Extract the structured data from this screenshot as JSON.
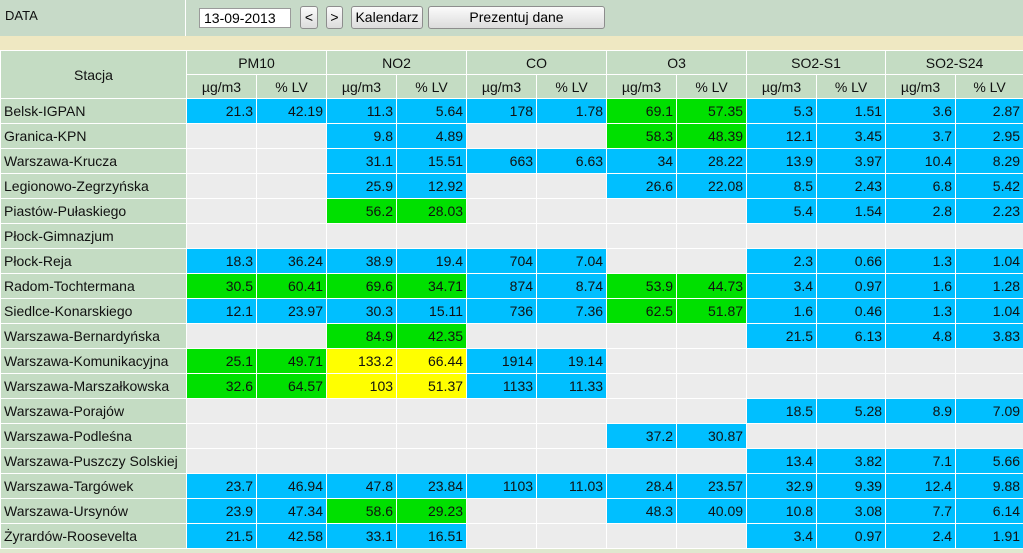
{
  "header": {
    "data_label": "DATA",
    "date_value": "13-09-2013",
    "prev_label": "<",
    "next_label": ">",
    "calendar_label": "Kalendarz",
    "present_label": "Prezentuj dane"
  },
  "colors": {
    "blue": "#00bfff",
    "green": "#00e000",
    "yellow": "#ffff00",
    "empty": "#ececec",
    "header": "#c4dcc3"
  },
  "table": {
    "station_header": "Stacja",
    "pollutants": [
      "PM10",
      "NO2",
      "CO",
      "O3",
      "SO2-S1",
      "SO2-S24"
    ],
    "units": [
      "µg/m3",
      "% LV"
    ],
    "rows": [
      {
        "name": "Belsk-IGPAN",
        "cells": [
          [
            "21.3",
            "b"
          ],
          [
            "42.19",
            "b"
          ],
          [
            "11.3",
            "b"
          ],
          [
            "5.64",
            "b"
          ],
          [
            "178",
            "b"
          ],
          [
            "1.78",
            "b"
          ],
          [
            "69.1",
            "g"
          ],
          [
            "57.35",
            "g"
          ],
          [
            "5.3",
            "b"
          ],
          [
            "1.51",
            "b"
          ],
          [
            "3.6",
            "b"
          ],
          [
            "2.87",
            "b"
          ]
        ]
      },
      {
        "name": "Granica-KPN",
        "cells": [
          [
            "",
            "e"
          ],
          [
            "",
            "e"
          ],
          [
            "9.8",
            "b"
          ],
          [
            "4.89",
            "b"
          ],
          [
            "",
            "e"
          ],
          [
            "",
            "e"
          ],
          [
            "58.3",
            "g"
          ],
          [
            "48.39",
            "g"
          ],
          [
            "12.1",
            "b"
          ],
          [
            "3.45",
            "b"
          ],
          [
            "3.7",
            "b"
          ],
          [
            "2.95",
            "b"
          ]
        ]
      },
      {
        "name": "Warszawa-Krucza",
        "cells": [
          [
            "",
            "e"
          ],
          [
            "",
            "e"
          ],
          [
            "31.1",
            "b"
          ],
          [
            "15.51",
            "b"
          ],
          [
            "663",
            "b"
          ],
          [
            "6.63",
            "b"
          ],
          [
            "34",
            "b"
          ],
          [
            "28.22",
            "b"
          ],
          [
            "13.9",
            "b"
          ],
          [
            "3.97",
            "b"
          ],
          [
            "10.4",
            "b"
          ],
          [
            "8.29",
            "b"
          ]
        ]
      },
      {
        "name": "Legionowo-Zegrzyńska",
        "cells": [
          [
            "",
            "e"
          ],
          [
            "",
            "e"
          ],
          [
            "25.9",
            "b"
          ],
          [
            "12.92",
            "b"
          ],
          [
            "",
            "e"
          ],
          [
            "",
            "e"
          ],
          [
            "26.6",
            "b"
          ],
          [
            "22.08",
            "b"
          ],
          [
            "8.5",
            "b"
          ],
          [
            "2.43",
            "b"
          ],
          [
            "6.8",
            "b"
          ],
          [
            "5.42",
            "b"
          ]
        ]
      },
      {
        "name": "Piastów-Pułaskiego",
        "cells": [
          [
            "",
            "e"
          ],
          [
            "",
            "e"
          ],
          [
            "56.2",
            "g"
          ],
          [
            "28.03",
            "g"
          ],
          [
            "",
            "e"
          ],
          [
            "",
            "e"
          ],
          [
            "",
            "e"
          ],
          [
            "",
            "e"
          ],
          [
            "5.4",
            "b"
          ],
          [
            "1.54",
            "b"
          ],
          [
            "2.8",
            "b"
          ],
          [
            "2.23",
            "b"
          ]
        ]
      },
      {
        "name": "Płock-Gimnazjum",
        "cells": [
          [
            "",
            "e"
          ],
          [
            "",
            "e"
          ],
          [
            "",
            "e"
          ],
          [
            "",
            "e"
          ],
          [
            "",
            "e"
          ],
          [
            "",
            "e"
          ],
          [
            "",
            "e"
          ],
          [
            "",
            "e"
          ],
          [
            "",
            "e"
          ],
          [
            "",
            "e"
          ],
          [
            "",
            "e"
          ],
          [
            "",
            "e"
          ]
        ]
      },
      {
        "name": "Płock-Reja",
        "cells": [
          [
            "18.3",
            "b"
          ],
          [
            "36.24",
            "b"
          ],
          [
            "38.9",
            "b"
          ],
          [
            "19.4",
            "b"
          ],
          [
            "704",
            "b"
          ],
          [
            "7.04",
            "b"
          ],
          [
            "",
            "e"
          ],
          [
            "",
            "e"
          ],
          [
            "2.3",
            "b"
          ],
          [
            "0.66",
            "b"
          ],
          [
            "1.3",
            "b"
          ],
          [
            "1.04",
            "b"
          ]
        ]
      },
      {
        "name": "Radom-Tochtermana",
        "cells": [
          [
            "30.5",
            "g"
          ],
          [
            "60.41",
            "g"
          ],
          [
            "69.6",
            "g"
          ],
          [
            "34.71",
            "g"
          ],
          [
            "874",
            "b"
          ],
          [
            "8.74",
            "b"
          ],
          [
            "53.9",
            "g"
          ],
          [
            "44.73",
            "g"
          ],
          [
            "3.4",
            "b"
          ],
          [
            "0.97",
            "b"
          ],
          [
            "1.6",
            "b"
          ],
          [
            "1.28",
            "b"
          ]
        ]
      },
      {
        "name": "Siedlce-Konarskiego",
        "cells": [
          [
            "12.1",
            "b"
          ],
          [
            "23.97",
            "b"
          ],
          [
            "30.3",
            "b"
          ],
          [
            "15.11",
            "b"
          ],
          [
            "736",
            "b"
          ],
          [
            "7.36",
            "b"
          ],
          [
            "62.5",
            "g"
          ],
          [
            "51.87",
            "g"
          ],
          [
            "1.6",
            "b"
          ],
          [
            "0.46",
            "b"
          ],
          [
            "1.3",
            "b"
          ],
          [
            "1.04",
            "b"
          ]
        ]
      },
      {
        "name": "Warszawa-Bernardyńska",
        "cells": [
          [
            "",
            "e"
          ],
          [
            "",
            "e"
          ],
          [
            "84.9",
            "g"
          ],
          [
            "42.35",
            "g"
          ],
          [
            "",
            "e"
          ],
          [
            "",
            "e"
          ],
          [
            "",
            "e"
          ],
          [
            "",
            "e"
          ],
          [
            "21.5",
            "b"
          ],
          [
            "6.13",
            "b"
          ],
          [
            "4.8",
            "b"
          ],
          [
            "3.83",
            "b"
          ]
        ]
      },
      {
        "name": "Warszawa-Komunikacyjna",
        "cells": [
          [
            "25.1",
            "g"
          ],
          [
            "49.71",
            "g"
          ],
          [
            "133.2",
            "y"
          ],
          [
            "66.44",
            "y"
          ],
          [
            "1914",
            "b"
          ],
          [
            "19.14",
            "b"
          ],
          [
            "",
            "e"
          ],
          [
            "",
            "e"
          ],
          [
            "",
            "e"
          ],
          [
            "",
            "e"
          ],
          [
            "",
            "e"
          ],
          [
            "",
            "e"
          ]
        ]
      },
      {
        "name": "Warszawa-Marszałkowska",
        "cells": [
          [
            "32.6",
            "g"
          ],
          [
            "64.57",
            "g"
          ],
          [
            "103",
            "y"
          ],
          [
            "51.37",
            "y"
          ],
          [
            "1133",
            "b"
          ],
          [
            "11.33",
            "b"
          ],
          [
            "",
            "e"
          ],
          [
            "",
            "e"
          ],
          [
            "",
            "e"
          ],
          [
            "",
            "e"
          ],
          [
            "",
            "e"
          ],
          [
            "",
            "e"
          ]
        ]
      },
      {
        "name": "Warszawa-Porajów",
        "cells": [
          [
            "",
            "e"
          ],
          [
            "",
            "e"
          ],
          [
            "",
            "e"
          ],
          [
            "",
            "e"
          ],
          [
            "",
            "e"
          ],
          [
            "",
            "e"
          ],
          [
            "",
            "e"
          ],
          [
            "",
            "e"
          ],
          [
            "18.5",
            "b"
          ],
          [
            "5.28",
            "b"
          ],
          [
            "8.9",
            "b"
          ],
          [
            "7.09",
            "b"
          ]
        ]
      },
      {
        "name": "Warszawa-Podleśna",
        "cells": [
          [
            "",
            "e"
          ],
          [
            "",
            "e"
          ],
          [
            "",
            "e"
          ],
          [
            "",
            "e"
          ],
          [
            "",
            "e"
          ],
          [
            "",
            "e"
          ],
          [
            "37.2",
            "b"
          ],
          [
            "30.87",
            "b"
          ],
          [
            "",
            "e"
          ],
          [
            "",
            "e"
          ],
          [
            "",
            "e"
          ],
          [
            "",
            "e"
          ]
        ]
      },
      {
        "name": "Warszawa-Puszczy Solskiej",
        "cells": [
          [
            "",
            "e"
          ],
          [
            "",
            "e"
          ],
          [
            "",
            "e"
          ],
          [
            "",
            "e"
          ],
          [
            "",
            "e"
          ],
          [
            "",
            "e"
          ],
          [
            "",
            "e"
          ],
          [
            "",
            "e"
          ],
          [
            "13.4",
            "b"
          ],
          [
            "3.82",
            "b"
          ],
          [
            "7.1",
            "b"
          ],
          [
            "5.66",
            "b"
          ]
        ]
      },
      {
        "name": "Warszawa-Targówek",
        "cells": [
          [
            "23.7",
            "b"
          ],
          [
            "46.94",
            "b"
          ],
          [
            "47.8",
            "b"
          ],
          [
            "23.84",
            "b"
          ],
          [
            "1103",
            "b"
          ],
          [
            "11.03",
            "b"
          ],
          [
            "28.4",
            "b"
          ],
          [
            "23.57",
            "b"
          ],
          [
            "32.9",
            "b"
          ],
          [
            "9.39",
            "b"
          ],
          [
            "12.4",
            "b"
          ],
          [
            "9.88",
            "b"
          ]
        ]
      },
      {
        "name": "Warszawa-Ursynów",
        "cells": [
          [
            "23.9",
            "b"
          ],
          [
            "47.34",
            "b"
          ],
          [
            "58.6",
            "g"
          ],
          [
            "29.23",
            "g"
          ],
          [
            "",
            "e"
          ],
          [
            "",
            "e"
          ],
          [
            "48.3",
            "b"
          ],
          [
            "40.09",
            "b"
          ],
          [
            "10.8",
            "b"
          ],
          [
            "3.08",
            "b"
          ],
          [
            "7.7",
            "b"
          ],
          [
            "6.14",
            "b"
          ]
        ]
      },
      {
        "name": "Żyrardów-Roosevelta",
        "cells": [
          [
            "21.5",
            "b"
          ],
          [
            "42.58",
            "b"
          ],
          [
            "33.1",
            "b"
          ],
          [
            "16.51",
            "b"
          ],
          [
            "",
            "e"
          ],
          [
            "",
            "e"
          ],
          [
            "",
            "e"
          ],
          [
            "",
            "e"
          ],
          [
            "3.4",
            "b"
          ],
          [
            "0.97",
            "b"
          ],
          [
            "2.4",
            "b"
          ],
          [
            "1.91",
            "b"
          ]
        ]
      }
    ]
  }
}
